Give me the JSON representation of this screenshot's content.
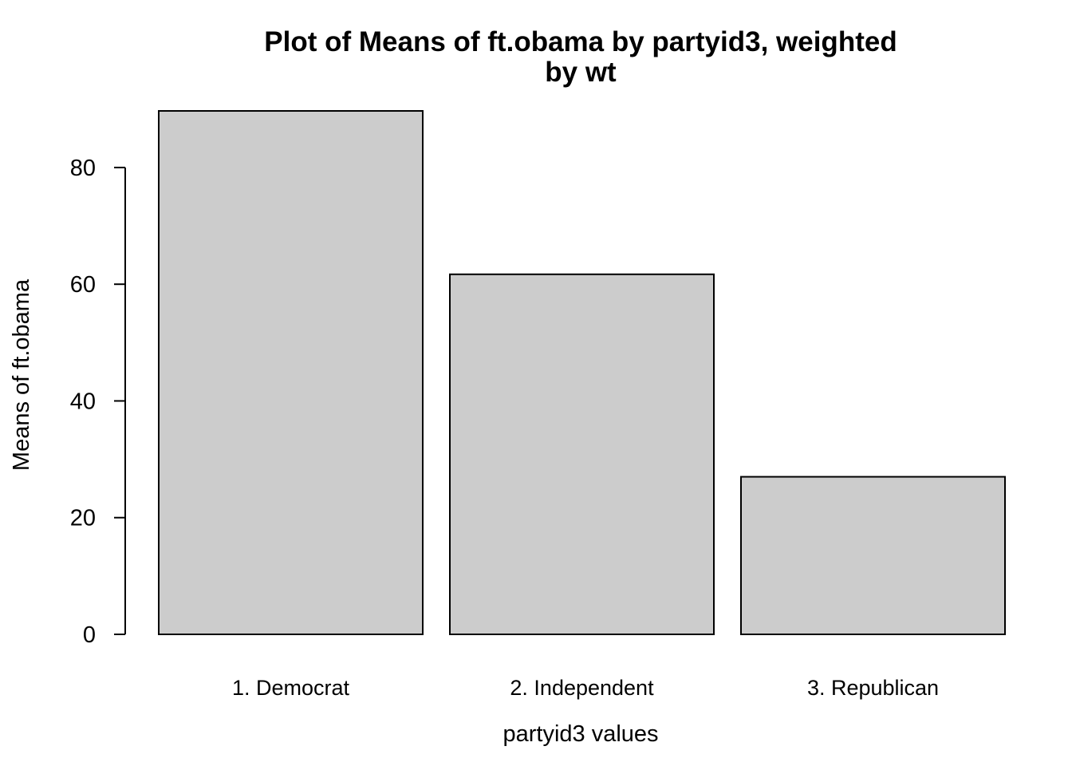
{
  "chart_data": {
    "type": "bar",
    "title_lines": [
      "Plot of Means of ft.obama by partyid3, weighted",
      "by wt"
    ],
    "xlabel": "partyid3 values",
    "ylabel": "Means of ft.obama",
    "categories": [
      "1. Democrat",
      "2. Independent",
      "3. Republican"
    ],
    "values": [
      89.7,
      61.7,
      27.0
    ],
    "ylim": [
      0,
      89.7
    ],
    "yticks": [
      0,
      20,
      40,
      60,
      80
    ],
    "bar_color": "#cccccc",
    "grid": false,
    "legend": "none"
  }
}
